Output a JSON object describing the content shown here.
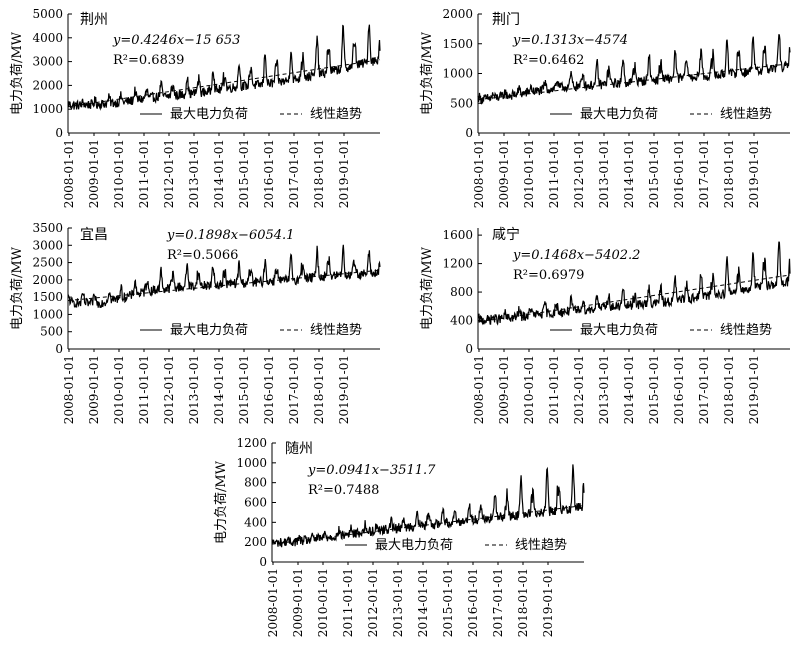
{
  "chart_data": [
    {
      "type": "line",
      "title": "荆州",
      "ylabel": "电力负荷/MW",
      "ylim": [
        0,
        5000
      ],
      "yticks": [
        0,
        1000,
        2000,
        3000,
        4000,
        5000
      ],
      "xticks": [
        "2008-01-01",
        "2009-01-01",
        "2010-01-01",
        "2011-01-01",
        "2012-01-01",
        "2013-01-01",
        "2014-01-01",
        "2015-01-01",
        "2016-01-01",
        "2017-01-01",
        "2018-01-01",
        "2019-01-01"
      ],
      "equation": "y=0.4246x−15 653",
      "r2": "R²=0.6839",
      "series": [
        {
          "name": "最大电力负荷",
          "values": [
            1150,
            1200,
            1300,
            1500,
            1600,
            1750,
            1950,
            2050,
            2250,
            2500,
            2800,
            3100
          ]
        },
        {
          "name": "线性趋势",
          "values": [
            1100,
            1280,
            1460,
            1640,
            1820,
            2000,
            2180,
            2360,
            2540,
            2720,
            2900,
            3080
          ]
        }
      ],
      "peaks": [
        1300,
        1500,
        1800,
        2100,
        2400,
        2800,
        3000,
        3500,
        3600,
        4200,
        4500,
        4700
      ]
    },
    {
      "type": "line",
      "title": "荆门",
      "ylabel": "电力负荷/MW",
      "ylim": [
        0,
        2000
      ],
      "yticks": [
        0,
        500,
        1000,
        1500,
        2000
      ],
      "xticks": [
        "2008-01-01",
        "2009-01-01",
        "2010-01-01",
        "2011-01-01",
        "2012-01-01",
        "2013-01-01",
        "2014-01-01",
        "2015-01-01",
        "2016-01-01",
        "2017-01-01",
        "2018-01-01",
        "2019-01-01"
      ],
      "equation": "y=0.1313x−4574",
      "r2": "R²=0.6462",
      "series": [
        {
          "name": "最大电力负荷",
          "values": [
            560,
            620,
            700,
            770,
            800,
            840,
            880,
            920,
            950,
            1000,
            1050,
            1120
          ]
        },
        {
          "name": "线性趋势",
          "values": [
            560,
            615,
            670,
            725,
            780,
            835,
            890,
            945,
            1000,
            1055,
            1110,
            1165
          ]
        }
      ],
      "peaks": [
        650,
        750,
        850,
        1000,
        1200,
        1300,
        1350,
        1400,
        1450,
        1650,
        1700,
        1750
      ]
    },
    {
      "type": "line",
      "title": "宜昌",
      "ylabel": "电力负荷/MW",
      "ylim": [
        0,
        3500
      ],
      "yticks": [
        0,
        500,
        1000,
        1500,
        2000,
        2500,
        3000,
        3500
      ],
      "xticks": [
        "2008-01-01",
        "2009-01-01",
        "2010-01-01",
        "2011-01-01",
        "2012-01-01",
        "2013-01-01",
        "2014-01-01",
        "2015-01-01",
        "2016-01-01",
        "2017-01-01",
        "2018-01-01",
        "2019-01-01"
      ],
      "equation": "y=0.1898x−6054.1",
      "r2": "R²=0.5066",
      "series": [
        {
          "name": "最大电力负荷",
          "values": [
            1350,
            1300,
            1500,
            1700,
            1800,
            1850,
            1900,
            1950,
            2000,
            2100,
            2150,
            2200
          ]
        },
        {
          "name": "线性趋势",
          "values": [
            1400,
            1480,
            1560,
            1640,
            1720,
            1800,
            1880,
            1960,
            2040,
            2120,
            2200,
            2280
          ]
        }
      ],
      "peaks": [
        1600,
        1700,
        2000,
        2300,
        2500,
        2400,
        2500,
        2600,
        2700,
        2900,
        3000,
        2800
      ]
    },
    {
      "type": "line",
      "title": "咸宁",
      "ylabel": "电力负荷/MW",
      "ylim": [
        0,
        1700
      ],
      "yticks": [
        0,
        400,
        800,
        1200,
        1600
      ],
      "xticks": [
        "2008-01-01",
        "2009-01-01",
        "2010-01-01",
        "2011-01-01",
        "2012-01-01",
        "2013-01-01",
        "2014-01-01",
        "2015-01-01",
        "2016-01-01",
        "2017-01-01",
        "2018-01-01",
        "2019-01-01"
      ],
      "equation": "y=0.1468x−5402.2",
      "r2": "R²=0.6979",
      "series": [
        {
          "name": "最大电力负荷",
          "values": [
            400,
            430,
            480,
            520,
            560,
            600,
            630,
            680,
            740,
            800,
            880,
            950
          ]
        },
        {
          "name": "线性趋势",
          "values": [
            380,
            440,
            500,
            560,
            620,
            680,
            740,
            800,
            860,
            920,
            980,
            1040
          ]
        }
      ],
      "peaks": [
        450,
        550,
        650,
        700,
        800,
        850,
        900,
        1000,
        1100,
        1300,
        1400,
        1550
      ]
    },
    {
      "type": "line",
      "title": "随州",
      "ylabel": "电力负荷/MW",
      "ylim": [
        0,
        1200
      ],
      "yticks": [
        0,
        200,
        400,
        600,
        800,
        1000,
        1200
      ],
      "xticks": [
        "2008-01-01",
        "2009-01-01",
        "2010-01-01",
        "2011-01-01",
        "2012-01-01",
        "2013-01-01",
        "2014-01-01",
        "2015-01-01",
        "2016-01-01",
        "2017-01-01",
        "2018-01-01",
        "2019-01-01"
      ],
      "equation": "y=0.0941x−3511.7",
      "r2": "R²=0.7488",
      "series": [
        {
          "name": "最大电力负荷",
          "values": [
            190,
            210,
            250,
            290,
            330,
            360,
            390,
            420,
            450,
            480,
            510,
            560
          ]
        },
        {
          "name": "线性趋势",
          "values": [
            180,
            215,
            250,
            285,
            320,
            355,
            390,
            425,
            460,
            495,
            530,
            570
          ]
        }
      ],
      "peaks": [
        220,
        260,
        320,
        380,
        420,
        500,
        550,
        600,
        700,
        900,
        950,
        1000
      ]
    }
  ]
}
